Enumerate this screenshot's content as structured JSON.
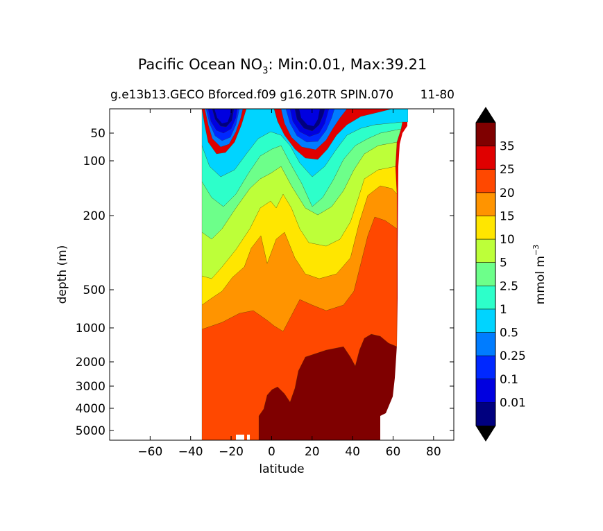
{
  "chart_data": {
    "type": "contour",
    "title_main": "Pacific Ocean NO",
    "title_sub": "3",
    "title_rest": ": Min:0.01, Max:39.21",
    "subtitle_left": "g.e13b13.GECO Bforced.f09 g16.20TR SPIN.070",
    "subtitle_right": "11-80",
    "xlabel": "latitude",
    "ylabel": "depth (m)",
    "xlim": [
      -80,
      90
    ],
    "x_ticks": [
      -60,
      -40,
      -20,
      0,
      20,
      40,
      60,
      80
    ],
    "x_tick_labels": [
      "−60",
      "−40",
      "−20",
      "0",
      "20",
      "40",
      "60",
      "80"
    ],
    "y_ticks": [
      50,
      100,
      200,
      500,
      1000,
      2000,
      3000,
      4000,
      5000
    ],
    "y_tick_labels": [
      "50",
      "100",
      "200",
      "500",
      "1000",
      "2000",
      "3000",
      "4000",
      "5000"
    ],
    "colorbar": {
      "label": "mmol m",
      "label_sup": "−3",
      "levels": [
        "0.01",
        "0.1",
        "0.25",
        "0.5",
        "1",
        "2.5",
        "5",
        "10",
        "15",
        "20",
        "25",
        "35"
      ],
      "colors": [
        "#00007f",
        "#0000e0",
        "#0028ff",
        "#007cff",
        "#00d4ff",
        "#2dffca",
        "#6dff8a",
        "#bdff39",
        "#ffe600",
        "#ff9400",
        "#ff4800",
        "#e00000",
        "#7f0000"
      ],
      "extend": "both"
    },
    "data_range": {
      "min": 0.01,
      "max": 39.21
    }
  }
}
